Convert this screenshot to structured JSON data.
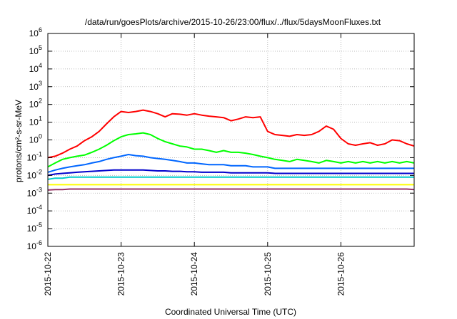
{
  "chart_data": {
    "type": "line",
    "title": "/data/run/goesPlots/archive/2015-10-26/23:00/flux/../flux/5daysMoonFluxes.txt",
    "xlabel": "Coordinated Universal Time (UTC)",
    "ylabel": "protons/cm²-s-sr-MeV",
    "y_scale": "log",
    "ylim": [
      1e-06,
      1000000.0
    ],
    "xlim": [
      0,
      5
    ],
    "x_ticks": [
      "2015-10-22",
      "2015-10-23",
      "2015-10-24",
      "2015-10-25",
      "2015-10-26"
    ],
    "y_tick_exponents": [
      -6,
      -5,
      -4,
      -3,
      -2,
      -1,
      0,
      1,
      2,
      3,
      4,
      5,
      6
    ],
    "y_tick_base": "10",
    "grid": true,
    "legend": "none",
    "x": [
      0,
      0.1,
      0.2,
      0.3,
      0.4,
      0.5,
      0.6,
      0.7,
      0.8,
      0.9,
      1.0,
      1.1,
      1.2,
      1.3,
      1.4,
      1.5,
      1.6,
      1.7,
      1.8,
      1.9,
      2.0,
      2.1,
      2.2,
      2.3,
      2.4,
      2.5,
      2.6,
      2.7,
      2.8,
      2.9,
      3.0,
      3.1,
      3.2,
      3.3,
      3.4,
      3.5,
      3.6,
      3.7,
      3.8,
      3.9,
      4.0,
      4.1,
      4.2,
      4.3,
      4.4,
      4.5,
      4.6,
      4.7,
      4.8,
      4.9,
      5.0
    ],
    "series": [
      {
        "color": "#ff0000",
        "values": [
          0.1,
          0.12,
          0.18,
          0.3,
          0.45,
          0.9,
          1.5,
          3,
          8,
          20,
          40,
          35,
          40,
          48,
          40,
          30,
          20,
          30,
          28,
          25,
          30,
          25,
          22,
          20,
          18,
          12,
          15,
          20,
          18,
          20,
          3,
          2,
          1.8,
          1.6,
          2.0,
          1.8,
          2.0,
          3,
          6,
          4,
          1.2,
          0.6,
          0.5,
          0.6,
          0.7,
          0.5,
          0.6,
          1.0,
          0.9,
          0.6,
          0.45
        ]
      },
      {
        "color": "#00ff00",
        "values": [
          0.03,
          0.05,
          0.08,
          0.1,
          0.12,
          0.14,
          0.2,
          0.3,
          0.5,
          0.9,
          1.5,
          2.0,
          2.2,
          2.5,
          2.0,
          1.2,
          0.8,
          0.6,
          0.45,
          0.4,
          0.3,
          0.3,
          0.25,
          0.2,
          0.25,
          0.2,
          0.2,
          0.18,
          0.15,
          0.12,
          0.1,
          0.08,
          0.07,
          0.06,
          0.08,
          0.07,
          0.06,
          0.05,
          0.07,
          0.06,
          0.05,
          0.06,
          0.05,
          0.06,
          0.05,
          0.06,
          0.05,
          0.06,
          0.05,
          0.06,
          0.05
        ]
      },
      {
        "color": "#0066ff",
        "values": [
          0.015,
          0.02,
          0.025,
          0.03,
          0.035,
          0.04,
          0.05,
          0.06,
          0.08,
          0.1,
          0.12,
          0.15,
          0.13,
          0.12,
          0.1,
          0.09,
          0.08,
          0.07,
          0.06,
          0.05,
          0.05,
          0.045,
          0.04,
          0.04,
          0.04,
          0.035,
          0.035,
          0.035,
          0.03,
          0.03,
          0.03,
          0.025,
          0.025,
          0.025,
          0.025,
          0.025,
          0.025,
          0.025,
          0.025,
          0.025,
          0.025,
          0.025,
          0.025,
          0.025,
          0.025,
          0.025,
          0.025,
          0.025,
          0.025,
          0.025,
          0.025
        ]
      },
      {
        "color": "#0000cc",
        "values": [
          0.01,
          0.012,
          0.013,
          0.014,
          0.015,
          0.016,
          0.017,
          0.018,
          0.019,
          0.02,
          0.02,
          0.02,
          0.02,
          0.02,
          0.019,
          0.018,
          0.018,
          0.017,
          0.017,
          0.016,
          0.016,
          0.015,
          0.015,
          0.015,
          0.015,
          0.014,
          0.014,
          0.014,
          0.014,
          0.014,
          0.014,
          0.013,
          0.013,
          0.013,
          0.013,
          0.013,
          0.013,
          0.013,
          0.013,
          0.013,
          0.013,
          0.013,
          0.013,
          0.013,
          0.013,
          0.013,
          0.013,
          0.013,
          0.013,
          0.013,
          0.013
        ]
      },
      {
        "color": "#00cccc",
        "values": [
          0.006,
          0.007,
          0.007,
          0.008,
          0.008,
          0.008,
          0.008,
          0.008,
          0.008,
          0.008,
          0.008,
          0.008,
          0.008,
          0.008,
          0.008,
          0.008,
          0.008,
          0.008,
          0.008,
          0.008,
          0.008,
          0.008,
          0.008,
          0.008,
          0.008,
          0.008,
          0.008,
          0.008,
          0.008,
          0.008,
          0.008,
          0.008,
          0.008,
          0.008,
          0.008,
          0.008,
          0.008,
          0.008,
          0.008,
          0.008,
          0.008,
          0.008,
          0.008,
          0.008,
          0.008,
          0.008,
          0.008,
          0.008,
          0.008,
          0.008,
          0.008
        ]
      },
      {
        "color": "#ffff00",
        "values": [
          0.003,
          0.003,
          0.003,
          0.003,
          0.003,
          0.003,
          0.003,
          0.003,
          0.003,
          0.003,
          0.003,
          0.003,
          0.003,
          0.003,
          0.003,
          0.003,
          0.003,
          0.003,
          0.003,
          0.003,
          0.003,
          0.003,
          0.003,
          0.003,
          0.003,
          0.003,
          0.003,
          0.003,
          0.003,
          0.003,
          0.003,
          0.003,
          0.003,
          0.003,
          0.003,
          0.003,
          0.003,
          0.003,
          0.003,
          0.003,
          0.003,
          0.003,
          0.003,
          0.003,
          0.003,
          0.003,
          0.003,
          0.003,
          0.003,
          0.003,
          0.003
        ]
      },
      {
        "color": "#993366",
        "values": [
          0.0015,
          0.0016,
          0.0016,
          0.0017,
          0.0017,
          0.0017,
          0.0017,
          0.0017,
          0.0017,
          0.0017,
          0.0017,
          0.0017,
          0.0017,
          0.0017,
          0.0017,
          0.0017,
          0.0017,
          0.0017,
          0.0017,
          0.0017,
          0.0017,
          0.0017,
          0.0017,
          0.0017,
          0.0017,
          0.0017,
          0.0017,
          0.0017,
          0.0017,
          0.0017,
          0.0017,
          0.0017,
          0.0017,
          0.0017,
          0.0017,
          0.0017,
          0.0017,
          0.0017,
          0.0017,
          0.0017,
          0.0017,
          0.0017,
          0.0017,
          0.0017,
          0.0017,
          0.0017,
          0.0017,
          0.0017,
          0.0017,
          0.0017,
          0.0016
        ]
      }
    ]
  }
}
